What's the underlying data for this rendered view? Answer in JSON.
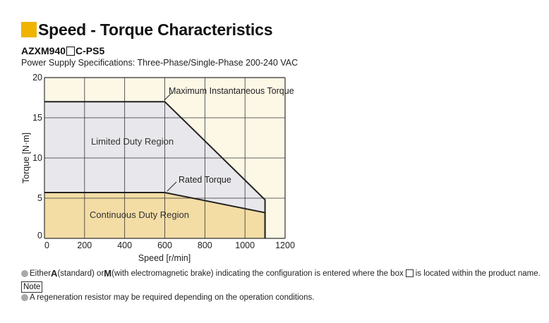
{
  "header": {
    "title": "Speed - Torque Characteristics",
    "accent_color": "#f0b400"
  },
  "model": {
    "prefix": "AZXM940",
    "suffix": "C-PS5"
  },
  "power_supply": "Power Supply Specifications: Three-Phase/Single-Phase 200-240 VAC",
  "chart_data": {
    "type": "area",
    "xlabel": "Speed [r/min]",
    "ylabel": "Torque [N·m]",
    "xlim": [
      0,
      1200
    ],
    "ylim": [
      0,
      20
    ],
    "xticks": [
      0,
      200,
      400,
      600,
      800,
      1000,
      1200
    ],
    "yticks": [
      0,
      5,
      10,
      15,
      20
    ],
    "grid": true,
    "series": [
      {
        "name": "Maximum Instantaneous Torque",
        "x": [
          0,
          600,
          1100,
          1100
        ],
        "y": [
          17,
          17,
          4.8,
          0
        ]
      },
      {
        "name": "Rated Torque",
        "x": [
          0,
          600,
          1100,
          1100
        ],
        "y": [
          5.7,
          5.7,
          3.2,
          0
        ]
      }
    ],
    "regions": [
      {
        "label": "Limited Duty Region"
      },
      {
        "label": "Continuous Duty Region"
      }
    ],
    "colors": {
      "plot_bg": "#fdf7e6",
      "limited": "#e8e8ec",
      "continuous": "#f3dda5",
      "line": "#222222",
      "grid": "#333333"
    }
  },
  "notes": {
    "line1_a": "Either ",
    "line1_A": "A",
    "line1_b": " (standard) or ",
    "line1_M": "M",
    "line1_c": " (with electromagnetic brake) indicating the configuration is entered where the box ",
    "line1_d": " is located within the product name.",
    "tag": "Note",
    "line2": "A regeneration resistor may be required depending on the operation conditions."
  }
}
